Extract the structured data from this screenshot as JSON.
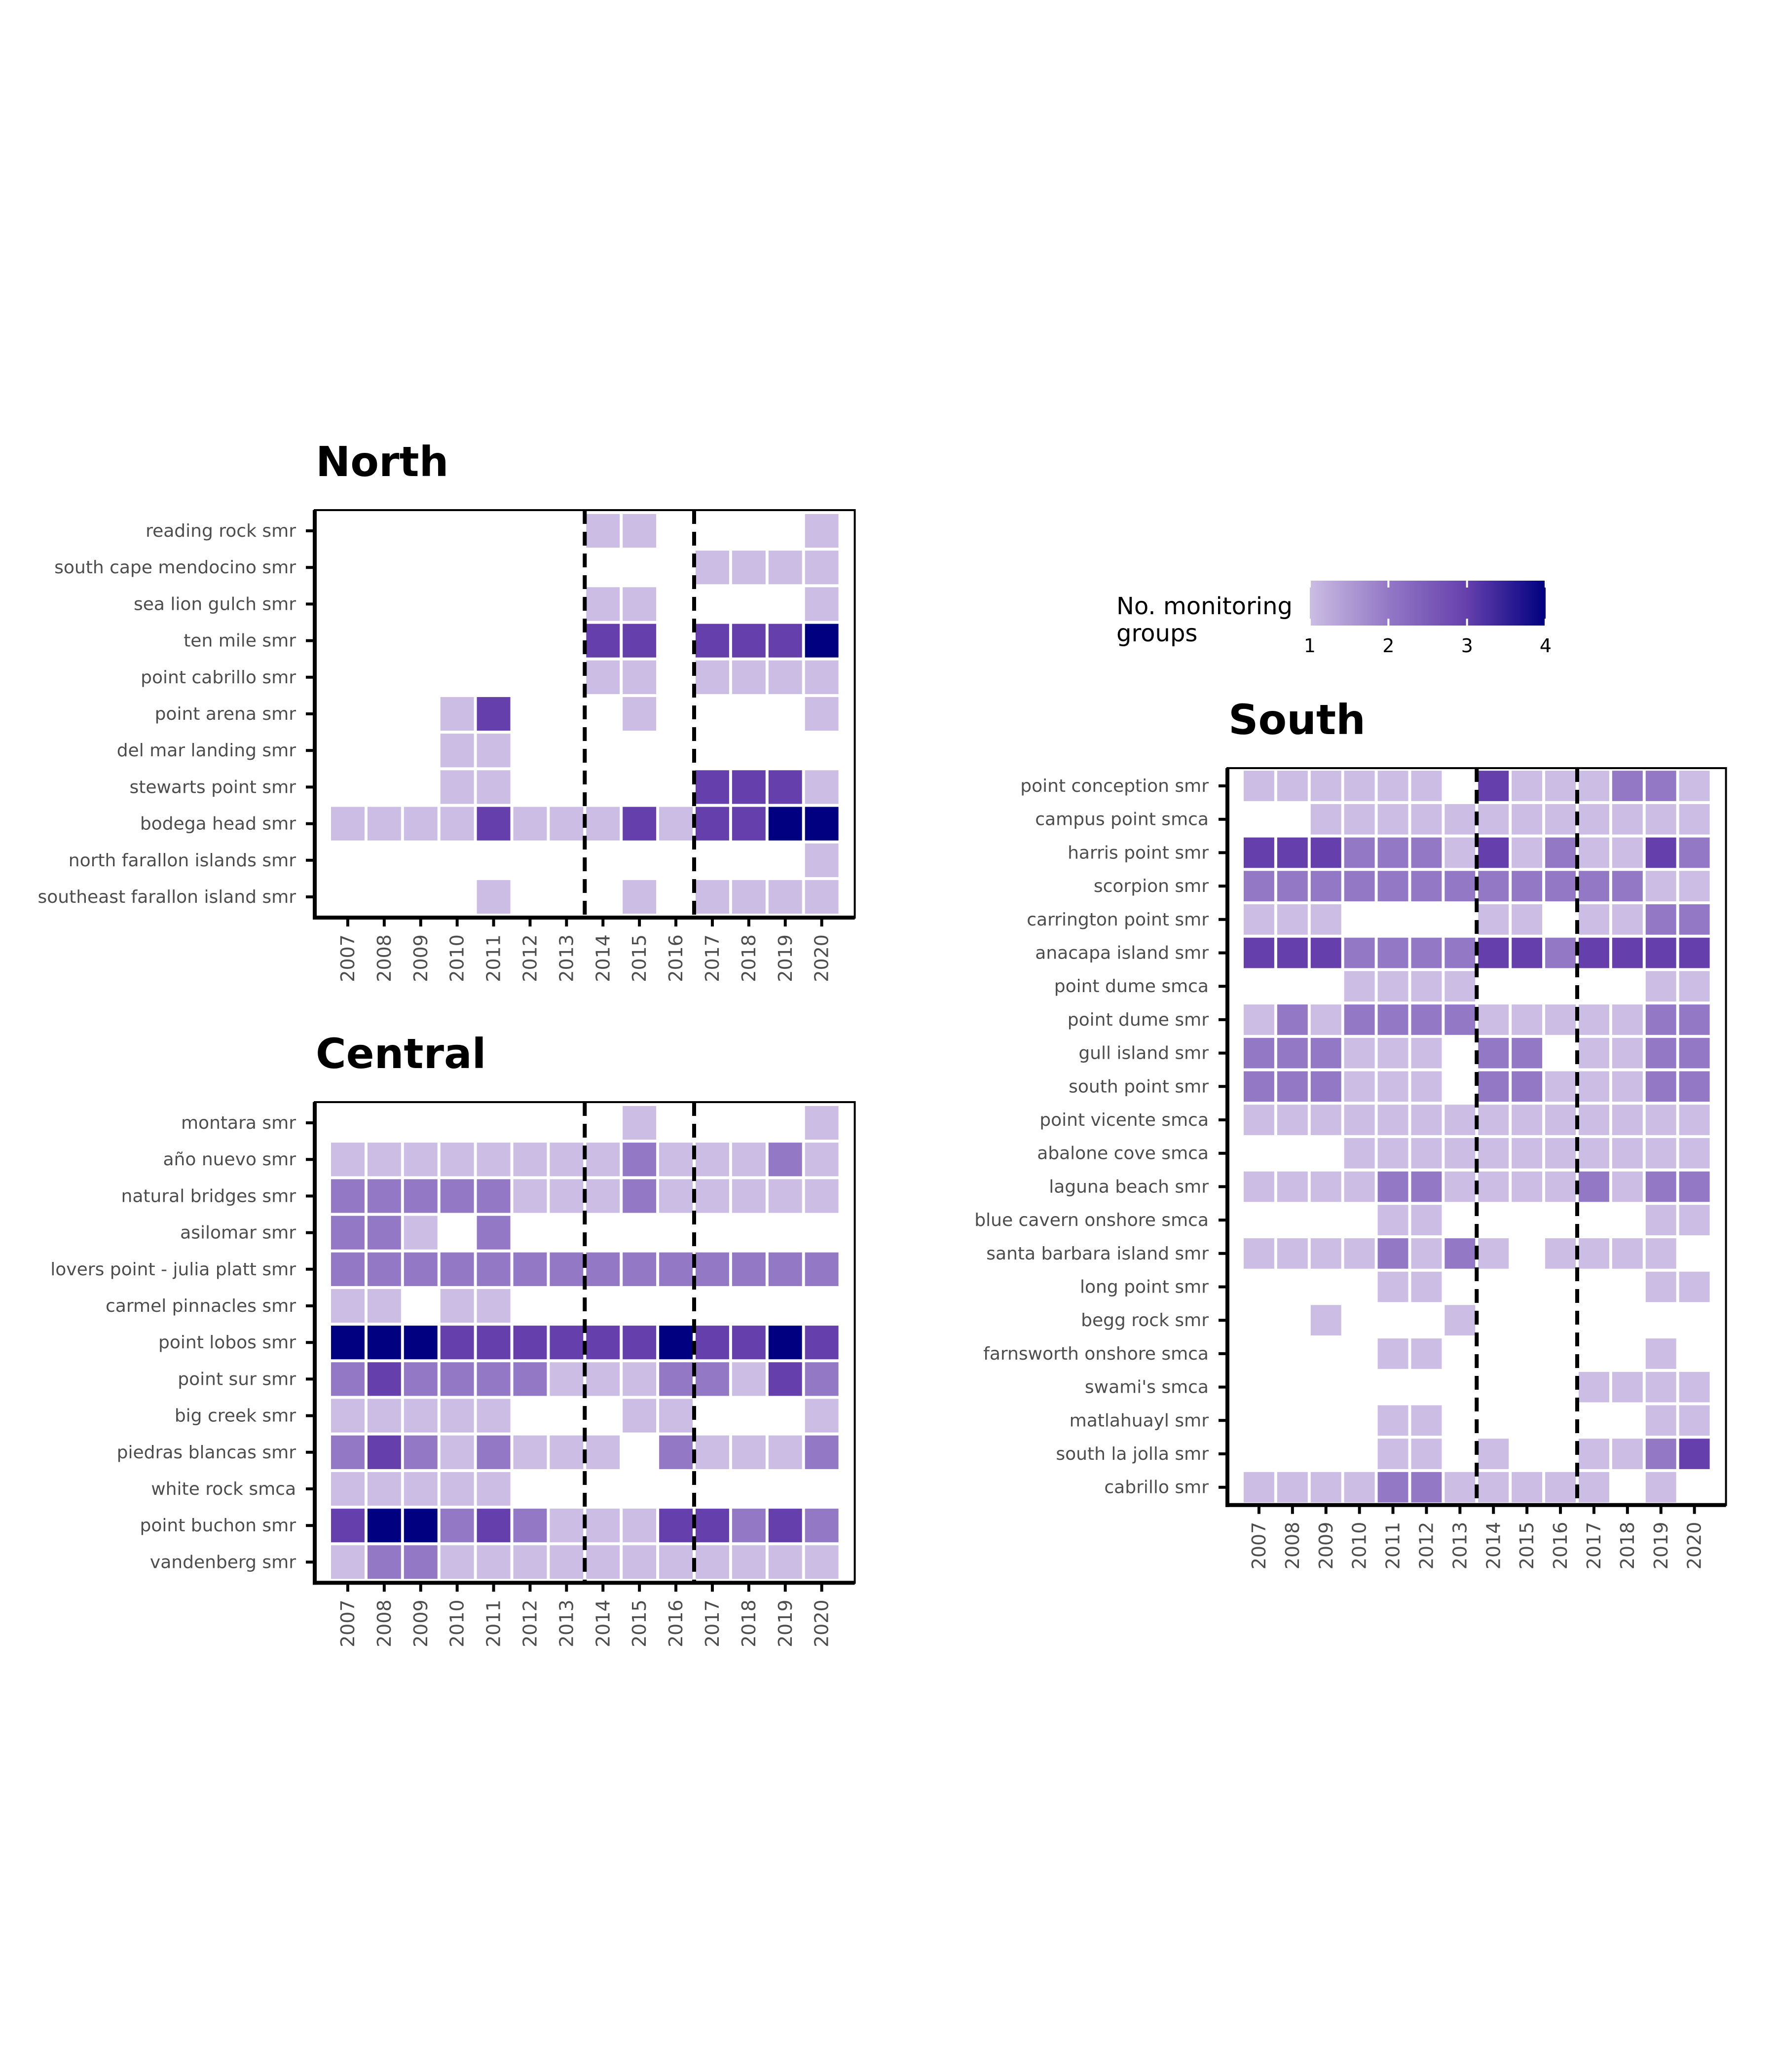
{
  "chart_data": [
    {
      "type": "heatmap",
      "title": "North",
      "x": [
        "2007",
        "2008",
        "2009",
        "2010",
        "2011",
        "2012",
        "2013",
        "2014",
        "2015",
        "2016",
        "2017",
        "2018",
        "2019",
        "2020"
      ],
      "period_breaks_after": [
        "2013",
        "2016"
      ],
      "rows": [
        {
          "site": "reading rock smr",
          "values": [
            0,
            0,
            0,
            0,
            0,
            0,
            0,
            1,
            1,
            0,
            0,
            0,
            0,
            1
          ]
        },
        {
          "site": "south cape mendocino smr",
          "values": [
            0,
            0,
            0,
            0,
            0,
            0,
            0,
            0,
            0,
            0,
            1,
            1,
            1,
            1
          ]
        },
        {
          "site": "sea lion gulch smr",
          "values": [
            0,
            0,
            0,
            0,
            0,
            0,
            0,
            1,
            1,
            0,
            0,
            0,
            0,
            1
          ]
        },
        {
          "site": "ten mile smr",
          "values": [
            0,
            0,
            0,
            0,
            0,
            0,
            0,
            3,
            3,
            0,
            3,
            3,
            3,
            4
          ]
        },
        {
          "site": "point cabrillo smr",
          "values": [
            0,
            0,
            0,
            0,
            0,
            0,
            0,
            1,
            1,
            0,
            1,
            1,
            1,
            1
          ]
        },
        {
          "site": "point arena smr",
          "values": [
            0,
            0,
            0,
            1,
            3,
            0,
            0,
            0,
            1,
            0,
            0,
            0,
            0,
            1
          ]
        },
        {
          "site": "del mar landing smr",
          "values": [
            0,
            0,
            0,
            1,
            1,
            0,
            0,
            0,
            0,
            0,
            0,
            0,
            0,
            0
          ]
        },
        {
          "site": "stewarts point smr",
          "values": [
            0,
            0,
            0,
            1,
            1,
            0,
            0,
            0,
            0,
            0,
            3,
            3,
            3,
            1
          ]
        },
        {
          "site": "bodega head smr",
          "values": [
            1,
            1,
            1,
            1,
            3,
            1,
            1,
            1,
            3,
            1,
            3,
            3,
            4,
            4
          ]
        },
        {
          "site": "north farallon islands smr",
          "values": [
            0,
            0,
            0,
            0,
            0,
            0,
            0,
            0,
            0,
            0,
            0,
            0,
            0,
            1
          ]
        },
        {
          "site": "southeast farallon island smr",
          "values": [
            0,
            0,
            0,
            0,
            1,
            0,
            0,
            0,
            1,
            0,
            1,
            1,
            1,
            1
          ]
        }
      ]
    },
    {
      "type": "heatmap",
      "title": "Central",
      "x": [
        "2007",
        "2008",
        "2009",
        "2010",
        "2011",
        "2012",
        "2013",
        "2014",
        "2015",
        "2016",
        "2017",
        "2018",
        "2019",
        "2020"
      ],
      "period_breaks_after": [
        "2013",
        "2016"
      ],
      "rows": [
        {
          "site": "montara smr",
          "values": [
            0,
            0,
            0,
            0,
            0,
            0,
            0,
            0,
            1,
            0,
            0,
            0,
            0,
            1
          ]
        },
        {
          "site": "año nuevo smr",
          "values": [
            1,
            1,
            1,
            1,
            1,
            1,
            1,
            1,
            2,
            1,
            1,
            1,
            2,
            1
          ]
        },
        {
          "site": "natural bridges smr",
          "values": [
            2,
            2,
            2,
            2,
            2,
            1,
            1,
            1,
            2,
            1,
            1,
            1,
            1,
            1
          ]
        },
        {
          "site": "asilomar smr",
          "values": [
            2,
            2,
            1,
            0,
            2,
            0,
            0,
            0,
            0,
            0,
            0,
            0,
            0,
            0
          ]
        },
        {
          "site": "lovers point - julia platt smr",
          "values": [
            2,
            2,
            2,
            2,
            2,
            2,
            2,
            2,
            2,
            2,
            2,
            2,
            2,
            2
          ]
        },
        {
          "site": "carmel pinnacles smr",
          "values": [
            1,
            1,
            0,
            1,
            1,
            0,
            0,
            0,
            0,
            0,
            0,
            0,
            0,
            0
          ]
        },
        {
          "site": "point lobos smr",
          "values": [
            4,
            4,
            4,
            3,
            3,
            3,
            3,
            3,
            3,
            4,
            3,
            3,
            4,
            3
          ]
        },
        {
          "site": "point sur smr",
          "values": [
            2,
            3,
            2,
            2,
            2,
            2,
            1,
            1,
            1,
            2,
            2,
            1,
            3,
            2
          ]
        },
        {
          "site": "big creek smr",
          "values": [
            1,
            1,
            1,
            1,
            1,
            0,
            0,
            0,
            1,
            1,
            0,
            0,
            0,
            1
          ]
        },
        {
          "site": "piedras blancas smr",
          "values": [
            2,
            3,
            2,
            1,
            2,
            1,
            1,
            1,
            0,
            2,
            1,
            1,
            1,
            2
          ]
        },
        {
          "site": "white rock smca",
          "values": [
            1,
            1,
            1,
            1,
            1,
            0,
            0,
            0,
            0,
            0,
            0,
            0,
            0,
            0
          ]
        },
        {
          "site": "point buchon smr",
          "values": [
            3,
            4,
            4,
            2,
            3,
            2,
            1,
            1,
            1,
            3,
            3,
            2,
            3,
            2
          ]
        },
        {
          "site": "vandenberg smr",
          "values": [
            1,
            2,
            2,
            1,
            1,
            1,
            1,
            1,
            1,
            1,
            1,
            1,
            1,
            1
          ]
        }
      ]
    },
    {
      "type": "heatmap",
      "title": "South",
      "x": [
        "2007",
        "2008",
        "2009",
        "2010",
        "2011",
        "2012",
        "2013",
        "2014",
        "2015",
        "2016",
        "2017",
        "2018",
        "2019",
        "2020"
      ],
      "period_breaks_after": [
        "2013",
        "2016"
      ],
      "rows": [
        {
          "site": "point conception smr",
          "values": [
            1,
            1,
            1,
            1,
            1,
            1,
            0,
            3,
            1,
            1,
            1,
            2,
            2,
            1
          ]
        },
        {
          "site": "campus point smca",
          "values": [
            0,
            0,
            1,
            1,
            1,
            1,
            1,
            1,
            1,
            1,
            1,
            1,
            1,
            1
          ]
        },
        {
          "site": "harris point smr",
          "values": [
            3,
            3,
            3,
            2,
            2,
            2,
            1,
            3,
            1,
            2,
            1,
            1,
            3,
            2
          ]
        },
        {
          "site": "scorpion smr",
          "values": [
            2,
            2,
            2,
            2,
            2,
            2,
            2,
            2,
            2,
            2,
            2,
            2,
            1,
            1
          ]
        },
        {
          "site": "carrington point smr",
          "values": [
            1,
            1,
            1,
            0,
            0,
            0,
            0,
            1,
            1,
            0,
            1,
            1,
            2,
            2
          ]
        },
        {
          "site": "anacapa island smr",
          "values": [
            3,
            3,
            3,
            2,
            2,
            2,
            2,
            3,
            3,
            2,
            3,
            3,
            3,
            3
          ]
        },
        {
          "site": "point dume smca",
          "values": [
            0,
            0,
            0,
            1,
            1,
            1,
            1,
            0,
            0,
            0,
            0,
            0,
            1,
            1
          ]
        },
        {
          "site": "point dume smr",
          "values": [
            1,
            2,
            1,
            2,
            2,
            2,
            2,
            1,
            1,
            1,
            1,
            1,
            2,
            2
          ]
        },
        {
          "site": "gull island smr",
          "values": [
            2,
            2,
            2,
            1,
            1,
            1,
            0,
            2,
            2,
            0,
            1,
            1,
            2,
            2
          ]
        },
        {
          "site": "south point smr",
          "values": [
            2,
            2,
            2,
            1,
            1,
            1,
            0,
            2,
            2,
            1,
            1,
            1,
            2,
            2
          ]
        },
        {
          "site": "point vicente smca",
          "values": [
            1,
            1,
            1,
            1,
            1,
            1,
            1,
            1,
            1,
            1,
            1,
            1,
            1,
            1
          ]
        },
        {
          "site": "abalone cove smca",
          "values": [
            0,
            0,
            0,
            1,
            1,
            1,
            1,
            1,
            1,
            1,
            1,
            1,
            1,
            1
          ]
        },
        {
          "site": "laguna beach smr",
          "values": [
            1,
            1,
            1,
            1,
            2,
            2,
            1,
            1,
            1,
            1,
            2,
            1,
            2,
            2
          ]
        },
        {
          "site": "blue cavern onshore smca",
          "values": [
            0,
            0,
            0,
            0,
            1,
            1,
            0,
            0,
            0,
            0,
            0,
            0,
            1,
            1
          ]
        },
        {
          "site": "santa barbara island smr",
          "values": [
            1,
            1,
            1,
            1,
            2,
            1,
            2,
            1,
            0,
            1,
            1,
            1,
            1,
            0
          ]
        },
        {
          "site": "long point smr",
          "values": [
            0,
            0,
            0,
            0,
            1,
            1,
            0,
            0,
            0,
            0,
            0,
            0,
            1,
            1
          ]
        },
        {
          "site": "begg rock smr",
          "values": [
            0,
            0,
            1,
            0,
            0,
            0,
            1,
            0,
            0,
            0,
            0,
            0,
            0,
            0
          ]
        },
        {
          "site": "farnsworth onshore smca",
          "values": [
            0,
            0,
            0,
            0,
            1,
            1,
            0,
            0,
            0,
            0,
            0,
            0,
            1,
            0
          ]
        },
        {
          "site": "swami's smca",
          "values": [
            0,
            0,
            0,
            0,
            0,
            0,
            0,
            0,
            0,
            0,
            1,
            1,
            1,
            1
          ]
        },
        {
          "site": "matlahuayl smr",
          "values": [
            0,
            0,
            0,
            0,
            1,
            1,
            0,
            0,
            0,
            0,
            0,
            0,
            1,
            1
          ]
        },
        {
          "site": "south la jolla smr",
          "values": [
            0,
            0,
            0,
            0,
            1,
            1,
            0,
            1,
            0,
            0,
            1,
            1,
            2,
            3
          ]
        },
        {
          "site": "cabrillo smr",
          "values": [
            1,
            1,
            1,
            1,
            2,
            2,
            1,
            1,
            1,
            1,
            1,
            0,
            1,
            0
          ]
        }
      ]
    }
  ],
  "legend": {
    "title_line1": "No. monitoring",
    "title_line2": "groups",
    "ticks": [
      "1",
      "2",
      "3",
      "4"
    ],
    "range": [
      1,
      4
    ],
    "colors": [
      "#cbbde3",
      "#9378c6",
      "#6540ac",
      "#000080"
    ]
  }
}
